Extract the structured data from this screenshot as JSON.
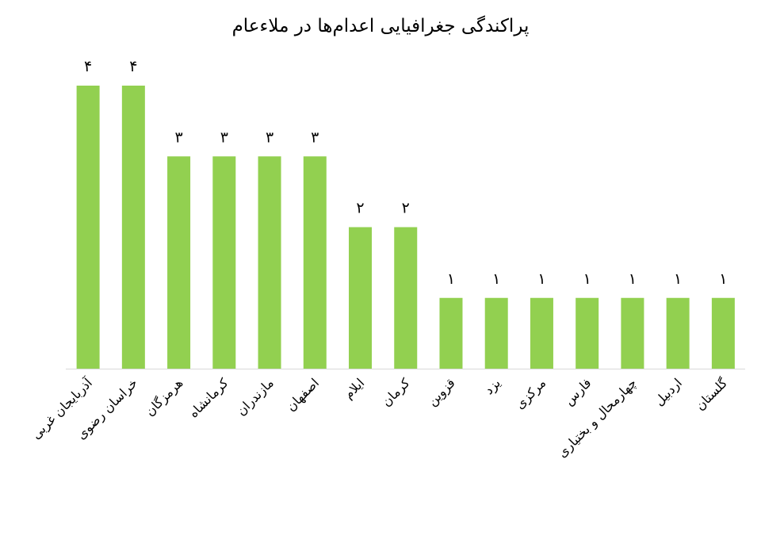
{
  "chart_data": {
    "type": "bar",
    "title": "پراکندگی جغرافیایی اعدام‌ها در ملاءعام",
    "categories": [
      "آذربایجان غربی",
      "خراسان رضوی",
      "هرمزگان",
      "کرمانشاه",
      "مازندران",
      "اصفهان",
      "ایلام",
      "کرمان",
      "قزوین",
      "یزد",
      "مرکزی",
      "فارس",
      "چهارمحال و بختیاری",
      "اردبیل",
      "گلستان"
    ],
    "values": [
      4,
      4,
      3,
      3,
      3,
      3,
      2,
      2,
      1,
      1,
      1,
      1,
      1,
      1,
      1
    ],
    "value_labels": [
      "۴",
      "۴",
      "۳",
      "۳",
      "۳",
      "۳",
      "۲",
      "۲",
      "۱",
      "۱",
      "۱",
      "۱",
      "۱",
      "۱",
      "۱"
    ],
    "color": "#92d050"
  }
}
